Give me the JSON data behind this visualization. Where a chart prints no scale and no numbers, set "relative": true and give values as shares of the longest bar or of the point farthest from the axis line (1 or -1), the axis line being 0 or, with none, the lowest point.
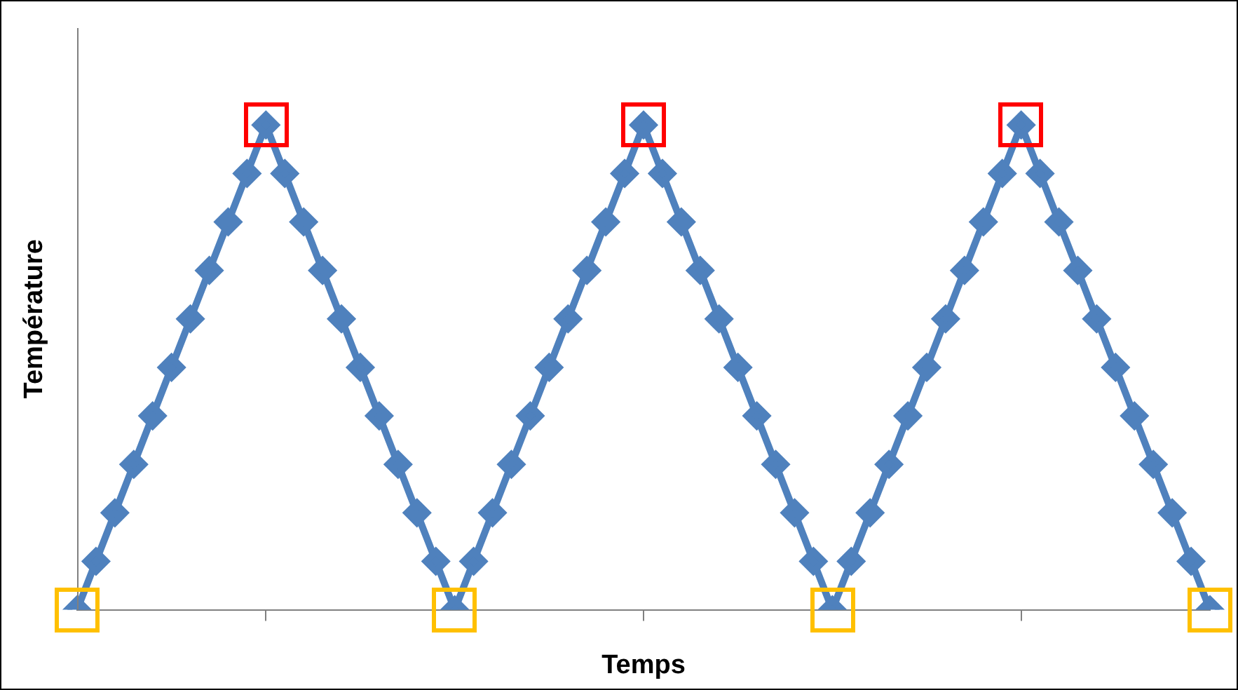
{
  "chart_data": {
    "type": "line",
    "xlabel": "Temps",
    "ylabel": "Température",
    "relative": true,
    "marker": "diamond",
    "line_style": "solid",
    "grid": false,
    "legend": false,
    "categories": [
      null,
      null,
      null,
      null,
      null,
      null,
      null,
      null,
      null,
      null,
      null,
      null,
      null,
      null,
      null,
      null,
      null,
      null,
      null,
      null,
      null,
      null,
      null,
      null,
      null,
      null,
      null,
      null,
      null,
      null,
      null,
      null,
      null,
      null,
      null,
      null,
      null,
      null,
      null,
      null,
      null,
      null,
      null,
      null,
      null,
      null,
      null,
      null,
      null,
      null,
      null,
      null,
      null,
      null,
      null,
      null,
      null,
      null,
      null,
      null,
      null
    ],
    "series": [
      {
        "color": "#4f81bd",
        "values": [
          0,
          0.1,
          0.2,
          0.3,
          0.4,
          0.5,
          0.6,
          0.7,
          0.8,
          0.9,
          1,
          0.9,
          0.8,
          0.7,
          0.6,
          0.5,
          0.4,
          0.3,
          0.2,
          0.1,
          0,
          0.1,
          0.2,
          0.3,
          0.4,
          0.5,
          0.6,
          0.7,
          0.8,
          0.9,
          1,
          0.9,
          0.8,
          0.7,
          0.6,
          0.5,
          0.4,
          0.3,
          0.2,
          0.1,
          0,
          0.1,
          0.2,
          0.3,
          0.4,
          0.5,
          0.6,
          0.7,
          0.8,
          0.9,
          1,
          0.9,
          0.8,
          0.7,
          0.6,
          0.5,
          0.4,
          0.3,
          0.2,
          0.1,
          0
        ]
      }
    ]
  }
}
